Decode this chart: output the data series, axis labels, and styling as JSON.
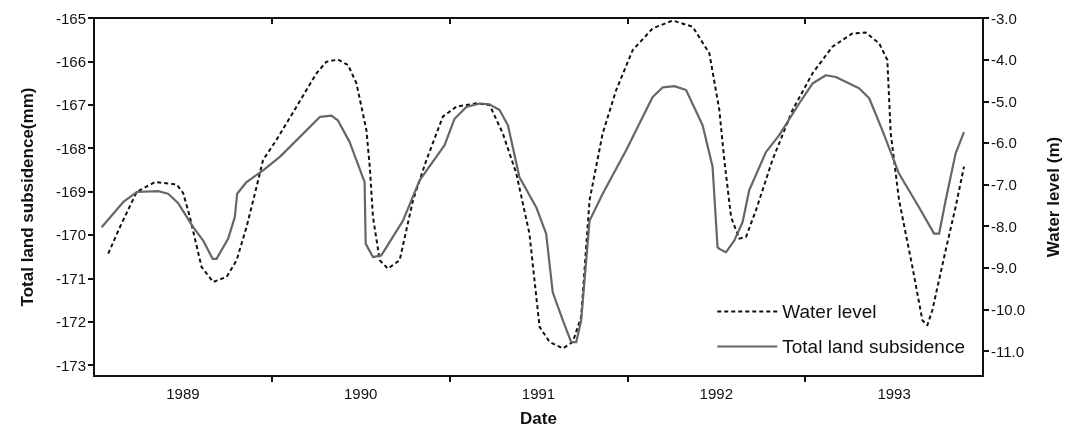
{
  "chart_data": {
    "type": "line",
    "xlabel": "Date",
    "ylabel": "Total land subsidence(mm)",
    "y2label": "Water level (m)",
    "xlim": [
      1989,
      1994
    ],
    "xticks": [
      {
        "value": 1990,
        "label": null
      },
      {
        "value": 1991,
        "label": null
      },
      {
        "value": 1992,
        "label": null
      },
      {
        "value": 1993,
        "label": null
      },
      {
        "value": 1989.5,
        "label": "1989"
      },
      {
        "value": 1990.5,
        "label": "1990"
      },
      {
        "value": 1991.5,
        "label": "1991"
      },
      {
        "value": 1992.5,
        "label": "1992"
      },
      {
        "value": 1993.5,
        "label": "1993"
      }
    ],
    "ylim": [
      -173.25,
      -165
    ],
    "yticks": [
      -165,
      -166,
      -167,
      -168,
      -169,
      -170,
      -171,
      -172,
      -173
    ],
    "y2lim": [
      -11.6,
      -3.0
    ],
    "y2ticks": [
      {
        "value": -3,
        "label": "-3.0"
      },
      {
        "value": -4,
        "label": "-4.0"
      },
      {
        "value": -5,
        "label": "-5.0"
      },
      {
        "value": -6,
        "label": "-6.0"
      },
      {
        "value": -7,
        "label": "-7.0"
      },
      {
        "value": -8,
        "label": "-8.0"
      },
      {
        "value": -9,
        "label": "-9.0"
      },
      {
        "value": -10,
        "label": "-10.0"
      },
      {
        "value": -11,
        "label": "-11.0"
      }
    ],
    "legend": "bottom right",
    "marker": "none",
    "series": [
      {
        "name": "Water level",
        "color": "#111111",
        "axis": "y2",
        "line_style": "dashed",
        "x": [
          1989.08,
          1989.146,
          1989.24,
          1989.343,
          1989.465,
          1989.502,
          1989.539,
          1989.605,
          1989.67,
          1989.746,
          1989.802,
          1989.858,
          1989.914,
          1989.951,
          1990.026,
          1990.139,
          1990.251,
          1990.307,
          1990.373,
          1990.429,
          1990.476,
          1990.532,
          1990.551,
          1990.569,
          1990.607,
          1990.653,
          1990.719,
          1990.794,
          1990.869,
          1990.962,
          1991.038,
          1991.15,
          1991.225,
          1991.299,
          1991.375,
          1991.449,
          1991.506,
          1991.562,
          1991.637,
          1991.693,
          1991.74,
          1991.787,
          1991.861,
          1991.937,
          1992.03,
          1992.142,
          1992.255,
          1992.367,
          1992.461,
          1992.517,
          1992.545,
          1992.583,
          1992.629,
          1992.667,
          1992.723,
          1992.816,
          1992.929,
          1993.041,
          1993.153,
          1993.266,
          1993.341,
          1993.416,
          1993.462,
          1993.481,
          1993.528,
          1993.603,
          1993.659,
          1993.687,
          1993.715,
          1993.79,
          1993.846,
          1993.893
        ],
        "values": [
          -8.66,
          -8.02,
          -7.18,
          -6.94,
          -7.0,
          -7.21,
          -7.78,
          -8.98,
          -9.34,
          -9.22,
          -8.82,
          -8.02,
          -7.06,
          -6.41,
          -5.93,
          -5.13,
          -4.33,
          -4.05,
          -4.0,
          -4.13,
          -4.57,
          -5.69,
          -6.57,
          -7.78,
          -8.82,
          -9.02,
          -8.82,
          -7.38,
          -6.42,
          -5.37,
          -5.13,
          -5.05,
          -5.09,
          -5.77,
          -6.73,
          -8.18,
          -10.42,
          -10.78,
          -10.94,
          -10.78,
          -10.18,
          -7.38,
          -5.77,
          -4.73,
          -3.77,
          -3.25,
          -3.06,
          -3.21,
          -3.85,
          -5.21,
          -6.41,
          -7.78,
          -8.3,
          -8.26,
          -7.62,
          -6.41,
          -5.21,
          -4.33,
          -3.69,
          -3.37,
          -3.35,
          -3.61,
          -4.01,
          -5.77,
          -7.38,
          -8.98,
          -10.26,
          -10.38,
          -10.02,
          -8.58,
          -7.54,
          -6.57
        ]
      },
      {
        "name": "Total land subsidence",
        "color": "#666666",
        "axis": "y",
        "line_style": "solid",
        "x": [
          1989.043,
          1989.165,
          1989.24,
          1989.361,
          1989.417,
          1989.474,
          1989.558,
          1989.614,
          1989.667,
          1989.689,
          1989.754,
          1989.792,
          1989.805,
          1989.858,
          1989.951,
          1990.045,
          1990.27,
          1990.335,
          1990.372,
          1990.438,
          1990.522,
          1990.528,
          1990.569,
          1990.616,
          1990.738,
          1990.831,
          1990.972,
          1991.028,
          1991.094,
          1991.169,
          1991.225,
          1991.281,
          1991.328,
          1991.393,
          1991.487,
          1991.543,
          1991.58,
          1991.637,
          1991.684,
          1991.712,
          1991.74,
          1991.787,
          1991.861,
          1991.993,
          1992.142,
          1992.198,
          1992.264,
          1992.33,
          1992.423,
          1992.479,
          1992.507,
          1992.517,
          1992.554,
          1992.601,
          1992.648,
          1992.685,
          1992.779,
          1992.854,
          1992.966,
          1993.041,
          1993.116,
          1993.172,
          1993.303,
          1993.36,
          1993.434,
          1993.528,
          1993.64,
          1993.725,
          1993.753,
          1993.79,
          1993.846,
          1993.893
        ],
        "values": [
          -169.82,
          -169.24,
          -169.01,
          -168.99,
          -169.05,
          -169.27,
          -169.82,
          -170.13,
          -170.55,
          -170.55,
          -170.09,
          -169.59,
          -169.05,
          -168.78,
          -168.51,
          -168.2,
          -167.28,
          -167.25,
          -167.36,
          -167.86,
          -168.78,
          -170.2,
          -170.51,
          -170.47,
          -169.67,
          -168.74,
          -167.93,
          -167.32,
          -167.05,
          -166.97,
          -166.99,
          -167.12,
          -167.47,
          -168.67,
          -169.36,
          -169.97,
          -171.32,
          -171.97,
          -172.47,
          -172.47,
          -171.97,
          -169.67,
          -169.05,
          -168.05,
          -166.82,
          -166.6,
          -166.57,
          -166.66,
          -167.47,
          -168.43,
          -170.28,
          -170.32,
          -170.4,
          -170.13,
          -169.7,
          -168.97,
          -168.09,
          -167.7,
          -166.97,
          -166.51,
          -166.32,
          -166.36,
          -166.62,
          -166.85,
          -167.59,
          -168.59,
          -169.36,
          -169.97,
          -169.97,
          -169.2,
          -168.12,
          -167.63
        ]
      }
    ]
  }
}
